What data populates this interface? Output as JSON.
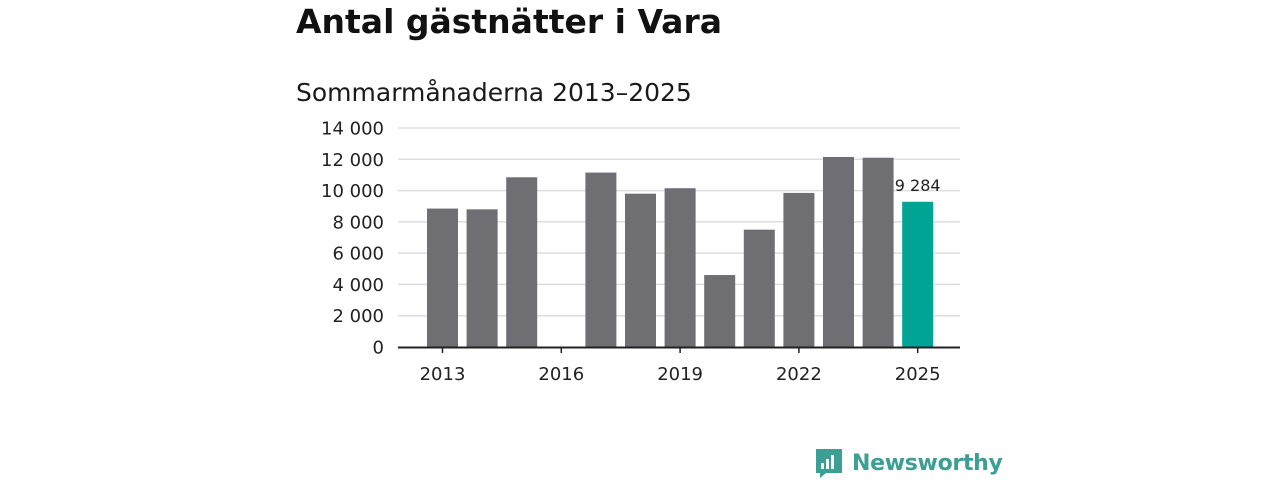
{
  "title": "Antal gästnätter i Vara",
  "subtitle": "Sommarmånaderna 2013–2025",
  "brand": {
    "name": "Newsworthy",
    "icon": "newsworthy-logo-icon",
    "color": "#3d9e93"
  },
  "colors": {
    "bar": "#6f6e73",
    "highlight": "#00a495",
    "grid": "#dddddd",
    "axis": "#222222"
  },
  "chart_data": {
    "type": "bar",
    "x": [
      2013,
      2014,
      2015,
      2016,
      2017,
      2018,
      2019,
      2020,
      2021,
      2022,
      2023,
      2024,
      2025
    ],
    "values": [
      8850,
      8800,
      10850,
      0,
      11150,
      9800,
      10150,
      4600,
      7500,
      9850,
      12150,
      12100,
      9284
    ],
    "xticks": [
      2013,
      2016,
      2019,
      2022,
      2025
    ],
    "xtick_labels": [
      "2013",
      "2016",
      "2019",
      "2022",
      "2025"
    ],
    "yticks": [
      0,
      2000,
      4000,
      6000,
      8000,
      10000,
      12000,
      14000
    ],
    "ytick_labels": [
      "0",
      "2 000",
      "4 000",
      "6 000",
      "8 000",
      "10 000",
      "12 000",
      "14 000"
    ],
    "ylim": [
      0,
      14000
    ],
    "highlight_index": 12,
    "highlight_label": "9 284",
    "grid": true,
    "legend": "none",
    "xlabel": "",
    "ylabel": ""
  }
}
